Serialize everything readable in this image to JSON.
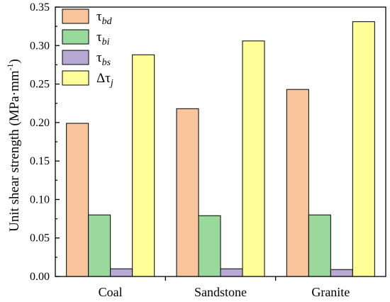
{
  "chart_data": {
    "type": "bar",
    "categories": [
      "Coal",
      "Sandstone",
      "Granite"
    ],
    "series": [
      {
        "name": "τbd",
        "symbol": "τ",
        "subscript": "bd",
        "color": "#F9C59D",
        "values": [
          0.199,
          0.218,
          0.243
        ]
      },
      {
        "name": "τbi",
        "symbol": "τ",
        "subscript": "bi",
        "color": "#99D99B",
        "values": [
          0.08,
          0.079,
          0.08
        ]
      },
      {
        "name": "τbs",
        "symbol": "τ",
        "subscript": "bs",
        "color": "#B7A9D4",
        "values": [
          0.01,
          0.01,
          0.009
        ]
      },
      {
        "name": "Δτj",
        "symbol": "Δτ",
        "subscript": "j",
        "color": "#FFFF99",
        "values": [
          0.288,
          0.306,
          0.331
        ]
      }
    ],
    "ylabel_main": "Unit shear strength (MPa·mm",
    "ylabel_sup": "-1",
    "ylabel_close": ")",
    "ylim": [
      0,
      0.35
    ],
    "yticks": [
      "0.00",
      "0.05",
      "0.10",
      "0.15",
      "0.20",
      "0.25",
      "0.30",
      "0.35"
    ],
    "legend_position": "top-left",
    "grid": false
  }
}
